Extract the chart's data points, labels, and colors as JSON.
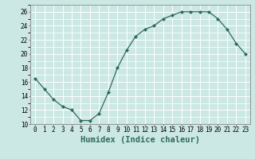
{
  "x": [
    0,
    1,
    2,
    3,
    4,
    5,
    6,
    7,
    8,
    9,
    10,
    11,
    12,
    13,
    14,
    15,
    16,
    17,
    18,
    19,
    20,
    21,
    22,
    23
  ],
  "y": [
    16.5,
    15,
    13.5,
    12.5,
    12,
    10.5,
    10.5,
    11.5,
    14.5,
    18,
    20.5,
    22.5,
    23.5,
    24,
    25,
    25.5,
    26,
    26,
    26,
    26,
    25,
    23.5,
    21.5,
    20
  ],
  "xlabel": "Humidex (Indice chaleur)",
  "xlim": [
    -0.5,
    23.5
  ],
  "ylim": [
    10,
    27
  ],
  "yticks": [
    10,
    12,
    14,
    16,
    18,
    20,
    22,
    24,
    26
  ],
  "xticks": [
    0,
    1,
    2,
    3,
    4,
    5,
    6,
    7,
    8,
    9,
    10,
    11,
    12,
    13,
    14,
    15,
    16,
    17,
    18,
    19,
    20,
    21,
    22,
    23
  ],
  "line_color": "#2e6b5e",
  "marker": "D",
  "marker_size": 2.0,
  "bg_color": "#cce8e4",
  "grid_color": "#ffffff",
  "label_fontsize": 7.5,
  "tick_fontsize": 5.5,
  "spine_color": "#888888"
}
